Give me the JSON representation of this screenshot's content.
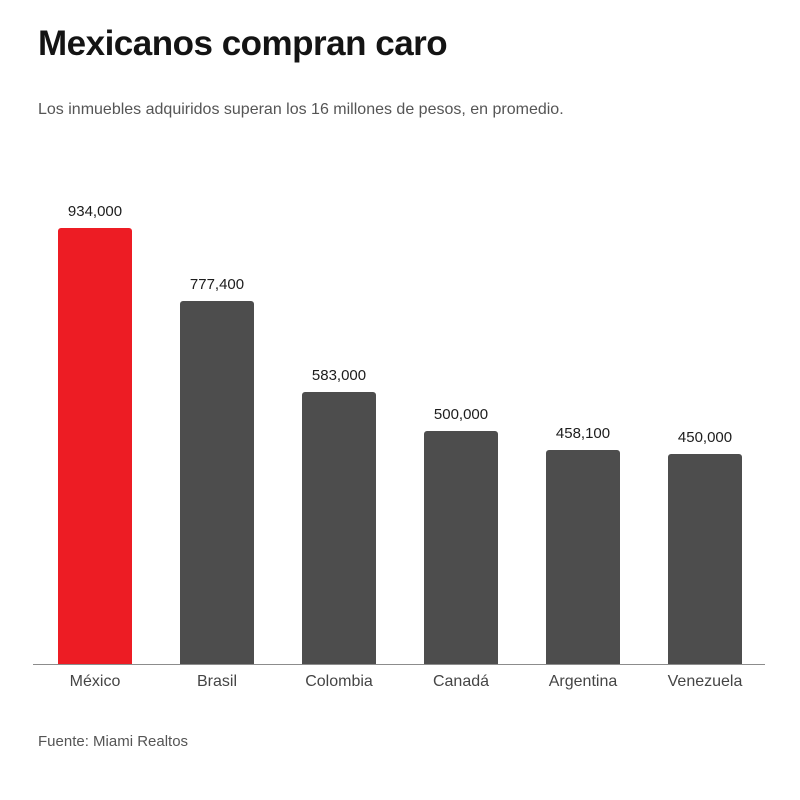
{
  "page": {
    "title": "Mexicanos compran caro",
    "subtitle": "Los inmuebles adquiridos superan los 16 millones de pesos, en promedio.",
    "source": "Fuente: Miami Realtos"
  },
  "colors": {
    "highlight_bar": "#ed1c24",
    "default_bar": "#4d4d4d",
    "axis_line": "#8c8c8c",
    "title_text": "#141414",
    "subtitle_text": "#555555",
    "value_text": "#1d1d1d",
    "category_text": "#454545"
  },
  "chart_data": {
    "type": "bar",
    "title": "Mexicanos compran caro",
    "subtitle": "Los inmuebles adquiridos superan los 16 millones de pesos, en promedio.",
    "source": "Fuente: Miami Realtos",
    "categories": [
      "México",
      "Brasil",
      "Colombia",
      "Canadá",
      "Argentina",
      "Venezuela"
    ],
    "values": [
      934000,
      777400,
      583000,
      500000,
      458100,
      450000
    ],
    "value_labels": [
      "934,000",
      "777,400",
      "583,000",
      "500,000",
      "458,100",
      "450,000"
    ],
    "highlight_index": 0,
    "highlight_category": "México",
    "xlabel": "",
    "ylabel": "",
    "ylim": [
      0,
      934000
    ],
    "grid": false,
    "legend": false,
    "y_axis_visible": false,
    "x_axis_visible": true
  }
}
